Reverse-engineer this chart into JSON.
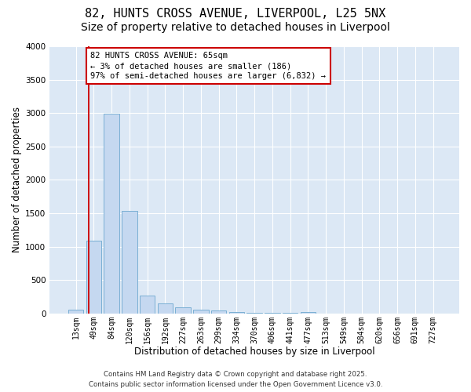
{
  "title_line1": "82, HUNTS CROSS AVENUE, LIVERPOOL, L25 5NX",
  "title_line2": "Size of property relative to detached houses in Liverpool",
  "xlabel": "Distribution of detached houses by size in Liverpool",
  "ylabel": "Number of detached properties",
  "bar_color": "#c5d8f0",
  "bar_edge_color": "#7aafd4",
  "background_color": "#dce8f5",
  "annotation_box_color": "#cc0000",
  "vline_color": "#cc0000",
  "categories": [
    "13sqm",
    "49sqm",
    "84sqm",
    "120sqm",
    "156sqm",
    "192sqm",
    "227sqm",
    "263sqm",
    "299sqm",
    "334sqm",
    "370sqm",
    "406sqm",
    "441sqm",
    "477sqm",
    "513sqm",
    "549sqm",
    "584sqm",
    "620sqm",
    "656sqm",
    "691sqm",
    "727sqm"
  ],
  "values": [
    55,
    1090,
    2990,
    1530,
    270,
    150,
    90,
    60,
    50,
    25,
    5,
    5,
    5,
    20,
    0,
    0,
    0,
    0,
    0,
    0,
    0
  ],
  "ylim": [
    0,
    4000
  ],
  "yticks": [
    0,
    500,
    1000,
    1500,
    2000,
    2500,
    3000,
    3500,
    4000
  ],
  "annotation_line1": "82 HUNTS CROSS AVENUE: 65sqm",
  "annotation_line2": "← 3% of detached houses are smaller (186)",
  "annotation_line3": "97% of semi-detached houses are larger (6,832) →",
  "vline_x": 0.72,
  "footer_line1": "Contains HM Land Registry data © Crown copyright and database right 2025.",
  "footer_line2": "Contains public sector information licensed under the Open Government Licence v3.0.",
  "title_fontsize": 11,
  "subtitle_fontsize": 10,
  "axis_label_fontsize": 8.5,
  "tick_fontsize": 7,
  "annotation_fontsize": 7.5,
  "footer_fontsize": 6.2
}
